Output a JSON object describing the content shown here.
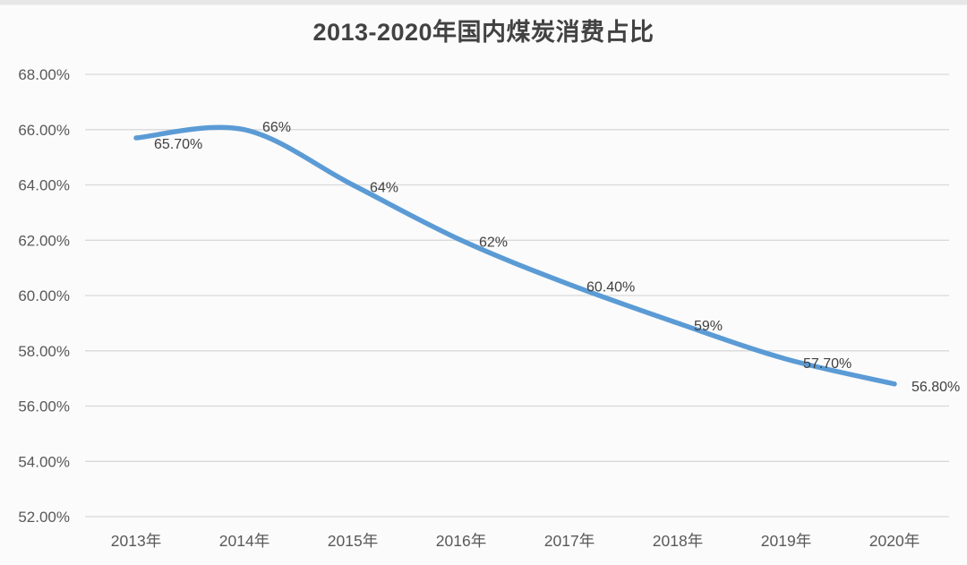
{
  "chart_data": {
    "type": "line",
    "title": "2013-2020年国内煤炭消费占比",
    "categories": [
      "2013年",
      "2014年",
      "2015年",
      "2016年",
      "2017年",
      "2018年",
      "2019年",
      "2020年"
    ],
    "values": [
      65.7,
      66,
      64,
      62,
      60.4,
      59,
      57.7,
      56.8
    ],
    "point_labels": [
      "65.70%",
      "66%",
      "64%",
      "62%",
      "60.40%",
      "59%",
      "57.70%",
      "56.80%"
    ],
    "xlabel": "",
    "ylabel": "",
    "ylim": [
      52,
      68
    ],
    "ytick_labels": [
      "68.00%",
      "66.00%",
      "64.00%",
      "62.00%",
      "60.00%",
      "58.00%",
      "56.00%",
      "54.00%",
      "52.00%"
    ],
    "grid": true,
    "legend": "none",
    "line_smooth": true,
    "colors": {
      "line": "#5B9BD5",
      "gridline": "#D9D9D9",
      "axis_text": "#595959",
      "data_label_text": "#404040",
      "title_text": "#424242",
      "background": "#FBFBFB"
    }
  }
}
